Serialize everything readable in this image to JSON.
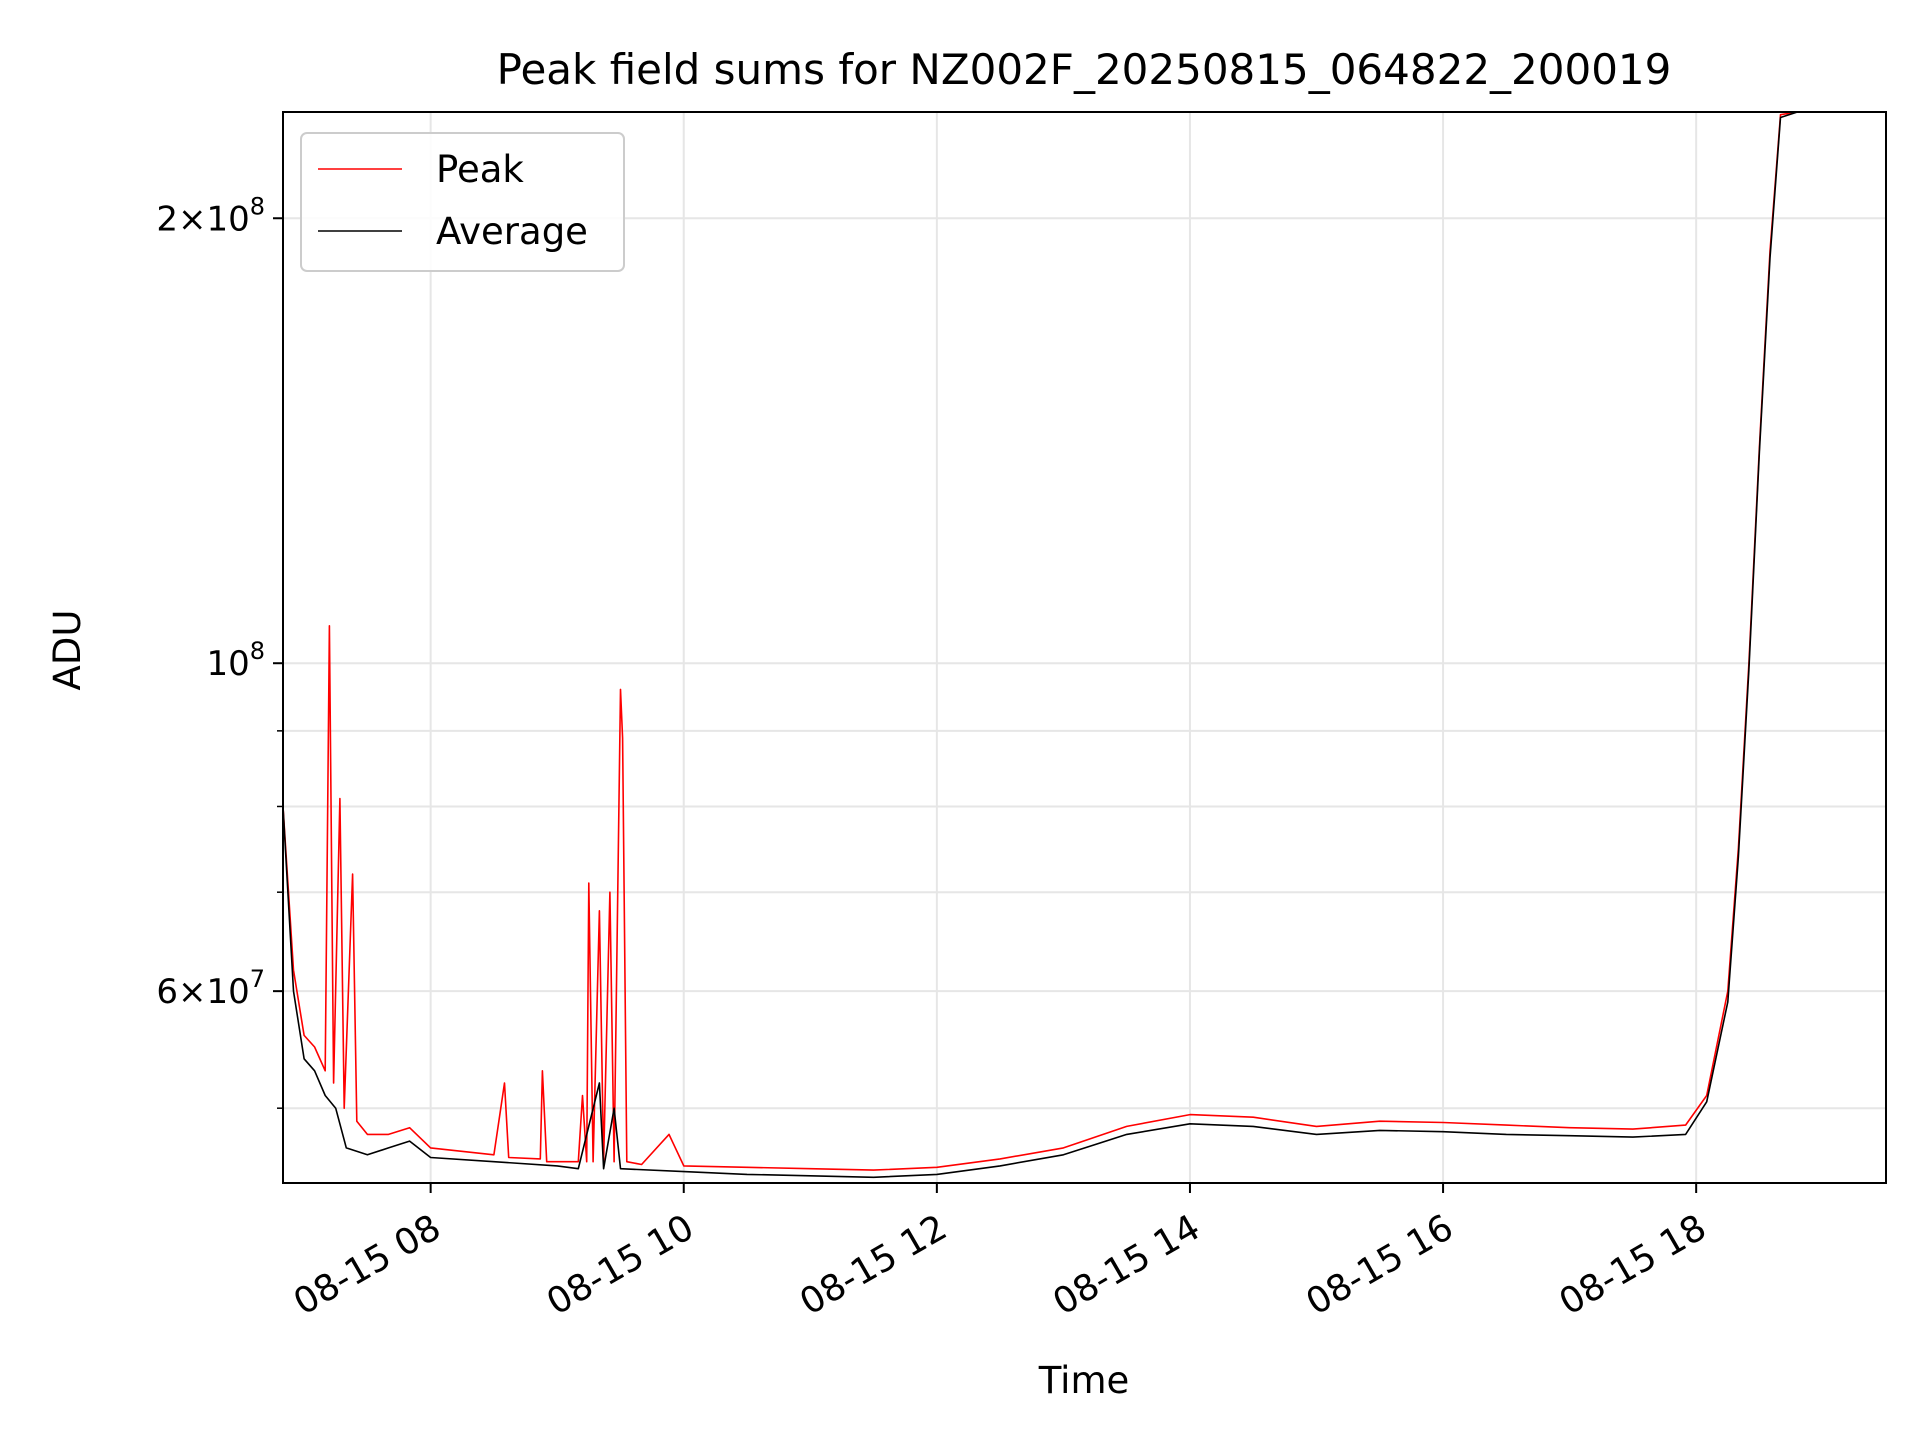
{
  "chart_data": {
    "type": "line",
    "title": "Peak field sums for NZ002F_20250815_064822_200019",
    "xlabel": "Time",
    "ylabel": "ADU",
    "y_scale": "log",
    "ylim": [
      44500000,
      236000000
    ],
    "xlim": [
      "2025-08-15 06:50",
      "2025-08-15 19:30"
    ],
    "grid": true,
    "legend_position": "top-left",
    "x_ticks": [
      {
        "t": "2025-08-15 08:00",
        "label": "08-15 08"
      },
      {
        "t": "2025-08-15 10:00",
        "label": "08-15 10"
      },
      {
        "t": "2025-08-15 12:00",
        "label": "08-15 12"
      },
      {
        "t": "2025-08-15 14:00",
        "label": "08-15 14"
      },
      {
        "t": "2025-08-15 16:00",
        "label": "08-15 16"
      },
      {
        "t": "2025-08-15 18:00",
        "label": "08-15 18"
      }
    ],
    "y_major_ticks": [
      {
        "value": 60000000,
        "mantissa": "6",
        "exp": "7"
      },
      {
        "value": 100000000,
        "mantissa": "",
        "exp": "8"
      },
      {
        "value": 200000000,
        "mantissa": "2",
        "exp": "8"
      }
    ],
    "y_minor_ticks": [
      50000000,
      70000000,
      80000000,
      90000000
    ],
    "series": [
      {
        "name": "Peak",
        "color": "#ff0000",
        "points": [
          [
            "2025-08-15 06:50",
            80000000
          ],
          [
            "2025-08-15 06:55",
            62000000
          ],
          [
            "2025-08-15 07:00",
            56000000
          ],
          [
            "2025-08-15 07:05",
            55000000
          ],
          [
            "2025-08-15 07:10",
            53000000
          ],
          [
            "2025-08-15 07:12",
            106000000
          ],
          [
            "2025-08-15 07:14",
            52000000
          ],
          [
            "2025-08-15 07:17",
            81000000
          ],
          [
            "2025-08-15 07:19",
            50000000
          ],
          [
            "2025-08-15 07:23",
            72000000
          ],
          [
            "2025-08-15 07:25",
            49000000
          ],
          [
            "2025-08-15 07:30",
            48000000
          ],
          [
            "2025-08-15 07:40",
            48000000
          ],
          [
            "2025-08-15 07:50",
            48500000
          ],
          [
            "2025-08-15 08:00",
            47000000
          ],
          [
            "2025-08-15 08:30",
            46500000
          ],
          [
            "2025-08-15 08:35",
            52000000
          ],
          [
            "2025-08-15 08:37",
            46300000
          ],
          [
            "2025-08-15 08:52",
            46200000
          ],
          [
            "2025-08-15 08:53",
            53000000
          ],
          [
            "2025-08-15 08:55",
            46000000
          ],
          [
            "2025-08-15 09:10",
            46000000
          ],
          [
            "2025-08-15 09:12",
            51000000
          ],
          [
            "2025-08-15 09:14",
            46000000
          ],
          [
            "2025-08-15 09:15",
            71000000
          ],
          [
            "2025-08-15 09:17",
            46000000
          ],
          [
            "2025-08-15 09:20",
            68000000
          ],
          [
            "2025-08-15 09:22",
            46000000
          ],
          [
            "2025-08-15 09:25",
            70000000
          ],
          [
            "2025-08-15 09:27",
            46000000
          ],
          [
            "2025-08-15 09:30",
            96000000
          ],
          [
            "2025-08-15 09:31",
            89000000
          ],
          [
            "2025-08-15 09:33",
            46000000
          ],
          [
            "2025-08-15 09:40",
            45800000
          ],
          [
            "2025-08-15 09:53",
            48000000
          ],
          [
            "2025-08-15 10:00",
            45700000
          ],
          [
            "2025-08-15 10:30",
            45600000
          ],
          [
            "2025-08-15 11:00",
            45500000
          ],
          [
            "2025-08-15 11:30",
            45400000
          ],
          [
            "2025-08-15 12:00",
            45600000
          ],
          [
            "2025-08-15 12:30",
            46200000
          ],
          [
            "2025-08-15 13:00",
            47000000
          ],
          [
            "2025-08-15 13:30",
            48600000
          ],
          [
            "2025-08-15 14:00",
            49500000
          ],
          [
            "2025-08-15 14:30",
            49300000
          ],
          [
            "2025-08-15 15:00",
            48600000
          ],
          [
            "2025-08-15 15:30",
            49000000
          ],
          [
            "2025-08-15 16:00",
            48900000
          ],
          [
            "2025-08-15 16:30",
            48700000
          ],
          [
            "2025-08-15 17:00",
            48500000
          ],
          [
            "2025-08-15 17:30",
            48400000
          ],
          [
            "2025-08-15 17:55",
            48700000
          ],
          [
            "2025-08-15 18:05",
            51000000
          ],
          [
            "2025-08-15 18:15",
            60000000
          ],
          [
            "2025-08-15 18:20",
            75000000
          ],
          [
            "2025-08-15 18:25",
            100000000
          ],
          [
            "2025-08-15 18:30",
            140000000
          ],
          [
            "2025-08-15 18:35",
            190000000
          ],
          [
            "2025-08-15 18:40",
            235000000
          ],
          [
            "2025-08-15 18:48",
            236000000
          ]
        ]
      },
      {
        "name": "Average",
        "color": "#000000",
        "points": [
          [
            "2025-08-15 06:50",
            80000000
          ],
          [
            "2025-08-15 06:55",
            60000000
          ],
          [
            "2025-08-15 07:00",
            54000000
          ],
          [
            "2025-08-15 07:05",
            53000000
          ],
          [
            "2025-08-15 07:10",
            51000000
          ],
          [
            "2025-08-15 07:15",
            50000000
          ],
          [
            "2025-08-15 07:20",
            47000000
          ],
          [
            "2025-08-15 07:30",
            46500000
          ],
          [
            "2025-08-15 07:40",
            47000000
          ],
          [
            "2025-08-15 07:50",
            47500000
          ],
          [
            "2025-08-15 08:00",
            46300000
          ],
          [
            "2025-08-15 08:30",
            46000000
          ],
          [
            "2025-08-15 09:00",
            45700000
          ],
          [
            "2025-08-15 09:10",
            45500000
          ],
          [
            "2025-08-15 09:20",
            52000000
          ],
          [
            "2025-08-15 09:22",
            45500000
          ],
          [
            "2025-08-15 09:27",
            50000000
          ],
          [
            "2025-08-15 09:30",
            45500000
          ],
          [
            "2025-08-15 10:00",
            45300000
          ],
          [
            "2025-08-15 10:30",
            45100000
          ],
          [
            "2025-08-15 11:00",
            45000000
          ],
          [
            "2025-08-15 11:30",
            44900000
          ],
          [
            "2025-08-15 12:00",
            45100000
          ],
          [
            "2025-08-15 12:30",
            45700000
          ],
          [
            "2025-08-15 13:00",
            46500000
          ],
          [
            "2025-08-15 13:30",
            48000000
          ],
          [
            "2025-08-15 14:00",
            48800000
          ],
          [
            "2025-08-15 14:30",
            48600000
          ],
          [
            "2025-08-15 15:00",
            48000000
          ],
          [
            "2025-08-15 15:30",
            48300000
          ],
          [
            "2025-08-15 16:00",
            48200000
          ],
          [
            "2025-08-15 16:30",
            48000000
          ],
          [
            "2025-08-15 17:00",
            47900000
          ],
          [
            "2025-08-15 17:30",
            47800000
          ],
          [
            "2025-08-15 17:55",
            48000000
          ],
          [
            "2025-08-15 18:05",
            50500000
          ],
          [
            "2025-08-15 18:15",
            59000000
          ],
          [
            "2025-08-15 18:20",
            74000000
          ],
          [
            "2025-08-15 18:25",
            99000000
          ],
          [
            "2025-08-15 18:30",
            139000000
          ],
          [
            "2025-08-15 18:35",
            188000000
          ],
          [
            "2025-08-15 18:40",
            234000000
          ],
          [
            "2025-08-15 18:48",
            236000000
          ]
        ]
      }
    ]
  }
}
